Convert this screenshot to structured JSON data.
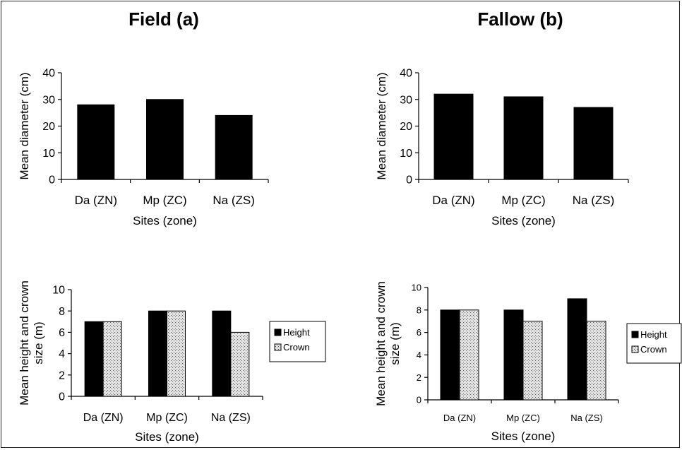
{
  "titles": {
    "field": "Field (a)",
    "fallow": "Fallow (b)"
  },
  "chart_data": [
    {
      "id": "field-diameter",
      "type": "bar",
      "panel": "Field (a)",
      "categories": [
        "Da (ZN)",
        "Mp (ZC)",
        "Na (ZS)"
      ],
      "series": [
        {
          "values": [
            28,
            30,
            24
          ],
          "color": "#000000"
        }
      ],
      "xlabel": "Sites (zone)",
      "ylabel": "Mean diameter (cm)",
      "ylim": [
        0,
        40
      ],
      "yticks": [
        0,
        10,
        20,
        30,
        40
      ],
      "grid": false,
      "legend": null
    },
    {
      "id": "fallow-diameter",
      "type": "bar",
      "panel": "Fallow (b)",
      "categories": [
        "Da (ZN)",
        "Mp (ZC)",
        "Na (ZS)"
      ],
      "series": [
        {
          "values": [
            32,
            31,
            27
          ],
          "color": "#000000"
        }
      ],
      "xlabel": "Sites (zone)",
      "ylabel": "Mean diameter (cm)",
      "ylim": [
        0,
        40
      ],
      "yticks": [
        0,
        10,
        20,
        30,
        40
      ],
      "grid": false,
      "legend": null
    },
    {
      "id": "field-height-crown",
      "type": "bar",
      "panel": "Field (a)",
      "categories": [
        "Da (ZN)",
        "Mp (ZC)",
        "Na (ZS)"
      ],
      "series": [
        {
          "name": "Height",
          "values": [
            7,
            8,
            8
          ],
          "color": "#000000"
        },
        {
          "name": "Crown",
          "values": [
            7,
            8,
            6
          ],
          "color": "#bdbdbd"
        }
      ],
      "xlabel": "Sites (zone)",
      "ylabel": "Mean height and crown size (m)",
      "ylim": [
        0,
        10
      ],
      "yticks": [
        0,
        2,
        4,
        6,
        8,
        10
      ],
      "grid": false,
      "legend": "right"
    },
    {
      "id": "fallow-height-crown",
      "type": "bar",
      "panel": "Fallow (b)",
      "categories": [
        "Da (ZN)",
        "Mp (ZC)",
        "Na (ZS)"
      ],
      "series": [
        {
          "name": "Height",
          "values": [
            8,
            8,
            9
          ],
          "color": "#000000"
        },
        {
          "name": "Crown",
          "values": [
            8,
            7,
            7
          ],
          "color": "#bdbdbd"
        }
      ],
      "xlabel": "Sites (zone)",
      "ylabel": "Mean height and crown size (m)",
      "ylim": [
        0,
        10
      ],
      "yticks": [
        0,
        2,
        4,
        6,
        8,
        10
      ],
      "grid": false,
      "legend": "right"
    }
  ]
}
